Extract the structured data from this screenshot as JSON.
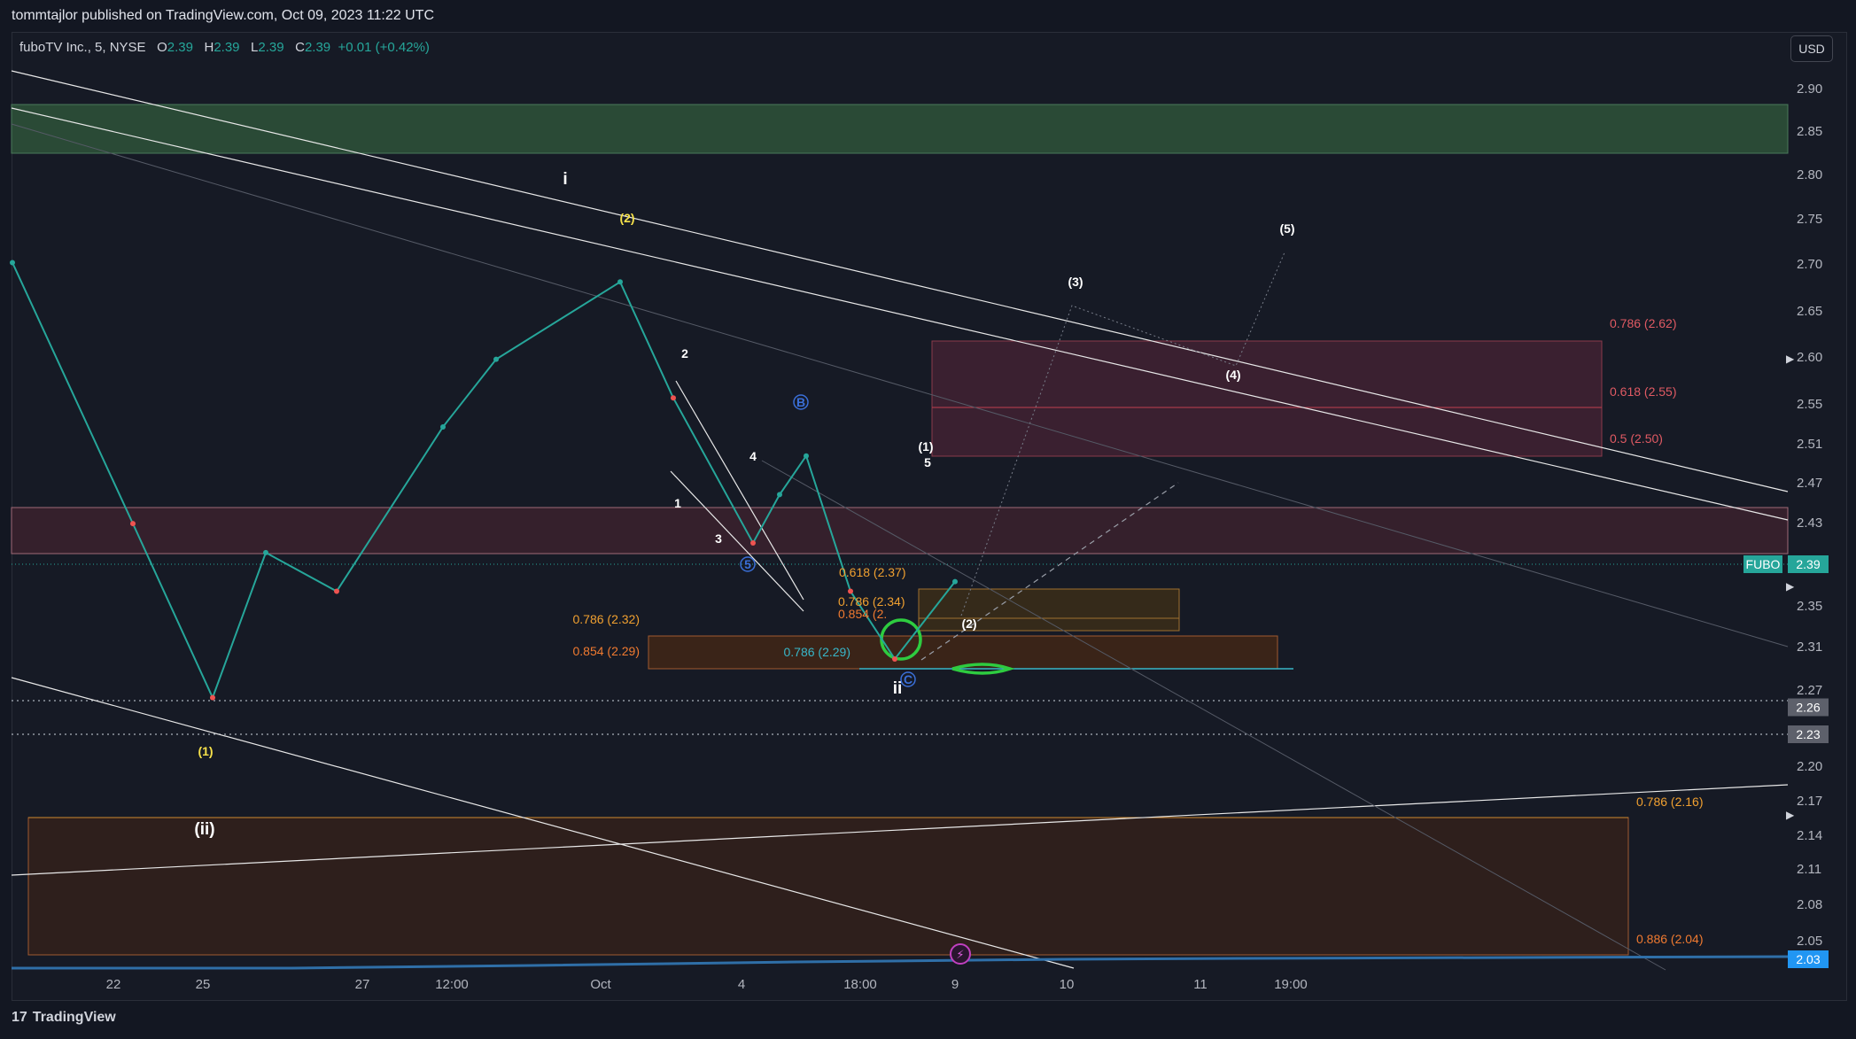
{
  "header": {
    "published": "tommtajlor published on TradingView.com, Oct 09, 2023 11:22 UTC"
  },
  "symbol": {
    "name": "fuboTV Inc., 5, NYSE",
    "o_label": "O",
    "o": "2.39",
    "h_label": "H",
    "h": "2.39",
    "l_label": "L",
    "l": "2.39",
    "c_label": "C",
    "c": "2.39",
    "change": "+0.01 (+0.42%)"
  },
  "currency_button": "USD",
  "footer": {
    "brand": "TradingView",
    "logo": "17"
  },
  "colors": {
    "background": "#161a25",
    "up": "#26a69a",
    "down": "#ef5350",
    "green_zone": "#2a4a36",
    "red_zone": "#3d2230",
    "orange_zone": "#3a2a1e"
  },
  "chart_data": {
    "type": "line",
    "title": "fuboTV Inc., 5, NYSE",
    "x_ticks": [
      "22",
      "25",
      "27",
      "12:00",
      "Oct",
      "4",
      "18:00",
      "9",
      "10",
      "11",
      "19:00"
    ],
    "y_ticks": [
      "2.90",
      "2.85",
      "2.80",
      "2.75",
      "2.70",
      "2.65",
      "2.60",
      "2.55",
      "2.51",
      "2.47",
      "2.43",
      "2.39",
      "2.35",
      "2.31",
      "2.27",
      "2.23",
      "2.20",
      "2.17",
      "2.14",
      "2.11",
      "2.08",
      "2.05",
      "2.03"
    ],
    "ylim": [
      2.0,
      2.93
    ],
    "series": [
      {
        "name": "FUBO",
        "x": [
          "22",
          "24",
          "25",
          "26",
          "27",
          "12:00",
          "30",
          "Oct",
          "2",
          "3",
          "4",
          "5",
          "18:00",
          "8",
          "9"
        ],
        "values": [
          2.72,
          2.45,
          2.27,
          2.42,
          2.38,
          2.55,
          2.62,
          2.7,
          2.58,
          2.43,
          2.48,
          2.52,
          2.38,
          2.31,
          2.39
        ]
      }
    ],
    "price_labels": [
      {
        "name": "FUBO",
        "value": "2.39"
      },
      {
        "name": "",
        "value": "2.26"
      },
      {
        "name": "",
        "value": "2.23"
      },
      {
        "name": "",
        "value": "2.03"
      }
    ],
    "fib_labels": [
      {
        "text": "0.786 (2.62)",
        "color": "#e05a63"
      },
      {
        "text": "0.618 (2.55)",
        "color": "#e05a63"
      },
      {
        "text": "0.5 (2.50)",
        "color": "#e05a63"
      },
      {
        "text": "0.786 (2.32)",
        "color": "#f0a030"
      },
      {
        "text": "0.854 (2.29)",
        "color": "#f07a30"
      },
      {
        "text": "0.786 (2.29)",
        "color": "#38b6c8"
      },
      {
        "text": "0.618 (2.37)",
        "color": "#f0a030"
      },
      {
        "text": "0.786 (2.34)",
        "color": "#f0a030"
      },
      {
        "text": "0.854 (2.",
        "color": "#f07a30"
      },
      {
        "text": "0.786 (2.16)",
        "color": "#f0a030"
      },
      {
        "text": "0.886 (2.04)",
        "color": "#f07a30"
      }
    ],
    "wave_labels": [
      {
        "text": "i",
        "color": "#ffffff"
      },
      {
        "text": "(2)",
        "color": "#f5e04a"
      },
      {
        "text": "(1)",
        "color": "#f5e04a"
      },
      {
        "text": "(ii)",
        "color": "#ffffff"
      },
      {
        "text": "ii",
        "color": "#ffffff"
      },
      {
        "text": "(1)",
        "color": "#ffffff"
      },
      {
        "text": "(2)",
        "color": "#ffffff"
      },
      {
        "text": "(3)",
        "color": "#ffffff"
      },
      {
        "text": "(4)",
        "color": "#ffffff"
      },
      {
        "text": "(5)",
        "color": "#ffffff"
      },
      {
        "text": "1",
        "color": "#ffffff"
      },
      {
        "text": "2",
        "color": "#ffffff"
      },
      {
        "text": "3",
        "color": "#ffffff"
      },
      {
        "text": "4",
        "color": "#ffffff"
      },
      {
        "text": "5",
        "color": "#ffffff"
      },
      {
        "text": "B",
        "color": "#3a6fd8"
      },
      {
        "text": "C",
        "color": "#3a6fd8"
      },
      {
        "text": "5",
        "color": "#3a6fd8"
      }
    ]
  }
}
